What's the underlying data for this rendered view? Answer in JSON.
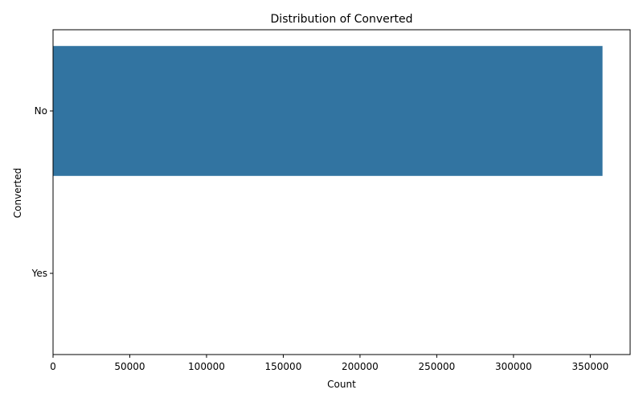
{
  "chart_data": {
    "type": "bar",
    "orientation": "horizontal",
    "title": "Distribution of Converted",
    "xlabel": "Count",
    "ylabel": "Converted",
    "categories": [
      "No",
      "Yes"
    ],
    "values": [
      358000,
      0
    ],
    "xlim": [
      0,
      376000
    ],
    "xticks": [
      0,
      50000,
      100000,
      150000,
      200000,
      250000,
      300000,
      350000
    ],
    "xtick_labels": [
      "0",
      "50000",
      "100000",
      "150000",
      "200000",
      "250000",
      "300000",
      "350000"
    ],
    "grid": false,
    "legend": "none",
    "colors": {
      "bar": "#3274a1",
      "axis": "#000000",
      "background": "#ffffff"
    }
  }
}
